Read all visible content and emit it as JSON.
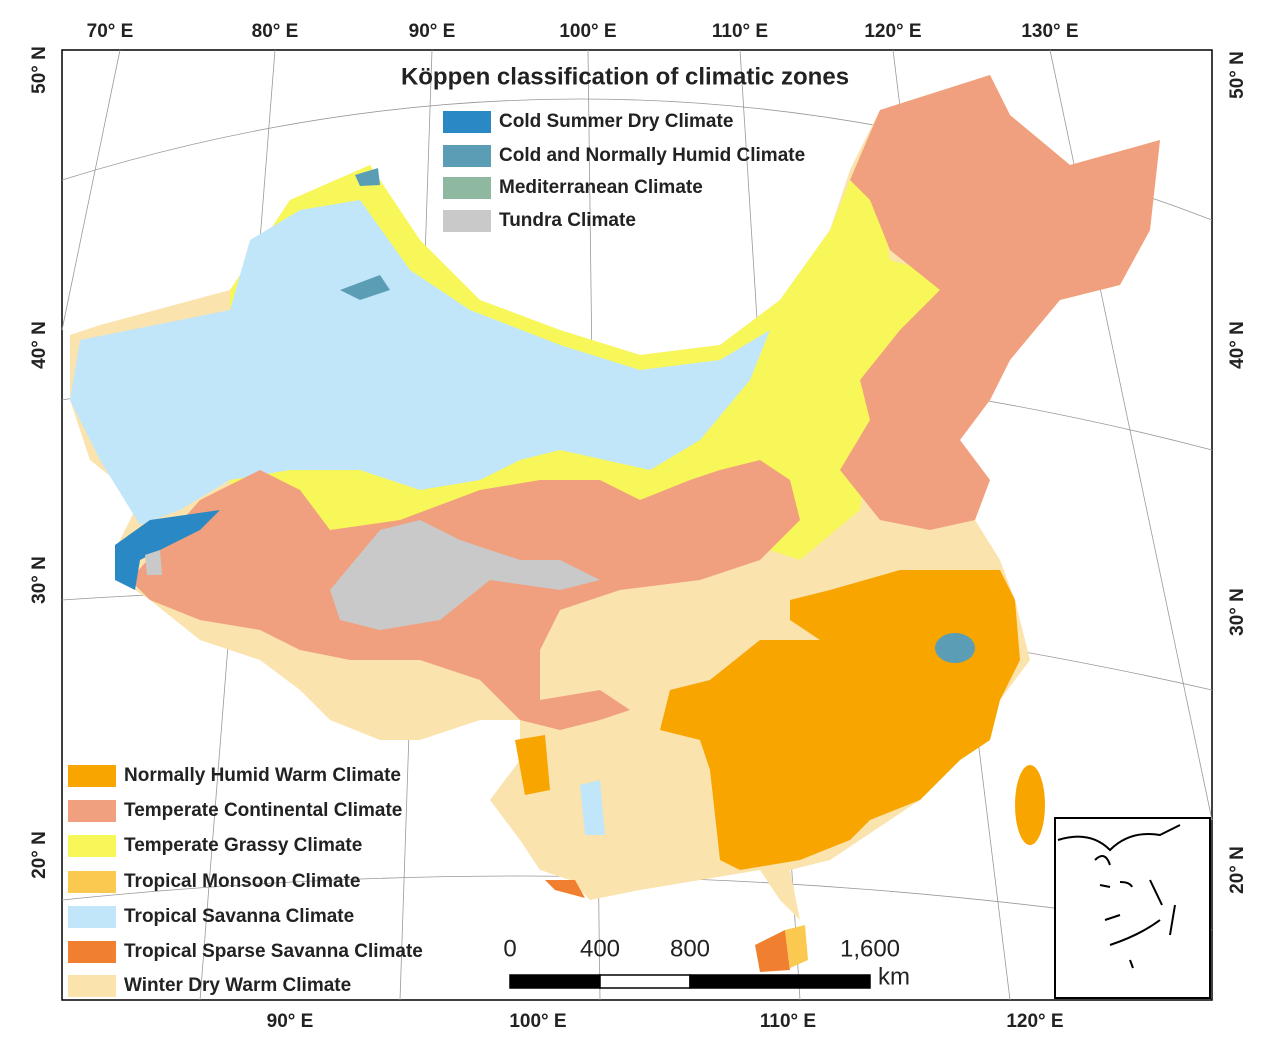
{
  "title": "Köppen classification of climatic zones",
  "legend_top": [
    {
      "label": "Cold Summer Dry Climate",
      "color": "#2a88c4"
    },
    {
      "label": "Cold and Normally Humid Climate",
      "color": "#5b9db5"
    },
    {
      "label": "Mediterranean Climate",
      "color": "#8fb8a0"
    },
    {
      "label": "Tundra Climate",
      "color": "#c9c9c9"
    }
  ],
  "legend_bottom": [
    {
      "label": "Normally Humid Warm Climate",
      "color": "#f8a500"
    },
    {
      "label": "Temperate Continental Climate",
      "color": "#f0a07e"
    },
    {
      "label": "Temperate Grassy Climate",
      "color": "#f7f75a"
    },
    {
      "label": "Tropical Monsoon Climate",
      "color": "#fbc94f"
    },
    {
      "label": "Tropical Savanna Climate",
      "color": "#c2e6f9"
    },
    {
      "label": "Tropical Sparse Savanna Climate",
      "color": "#f07f2f"
    },
    {
      "label": "Winter Dry Warm Climate",
      "color": "#fbe3ae"
    }
  ],
  "graticule": {
    "top": [
      "70° E",
      "80° E",
      "90° E",
      "100° E",
      "110° E",
      "120° E",
      "130° E"
    ],
    "bottom": [
      "90° E",
      "100° E",
      "110° E",
      "120° E"
    ],
    "left": [
      "50° N",
      "40° N",
      "30° N",
      "20° N"
    ],
    "right": [
      "50° N",
      "40° N",
      "30° N",
      "20° N"
    ]
  },
  "scale_bar": {
    "ticks": [
      0,
      400,
      800,
      {
        "value": 1600,
        "label": "1,600"
      }
    ],
    "unit": "km"
  }
}
